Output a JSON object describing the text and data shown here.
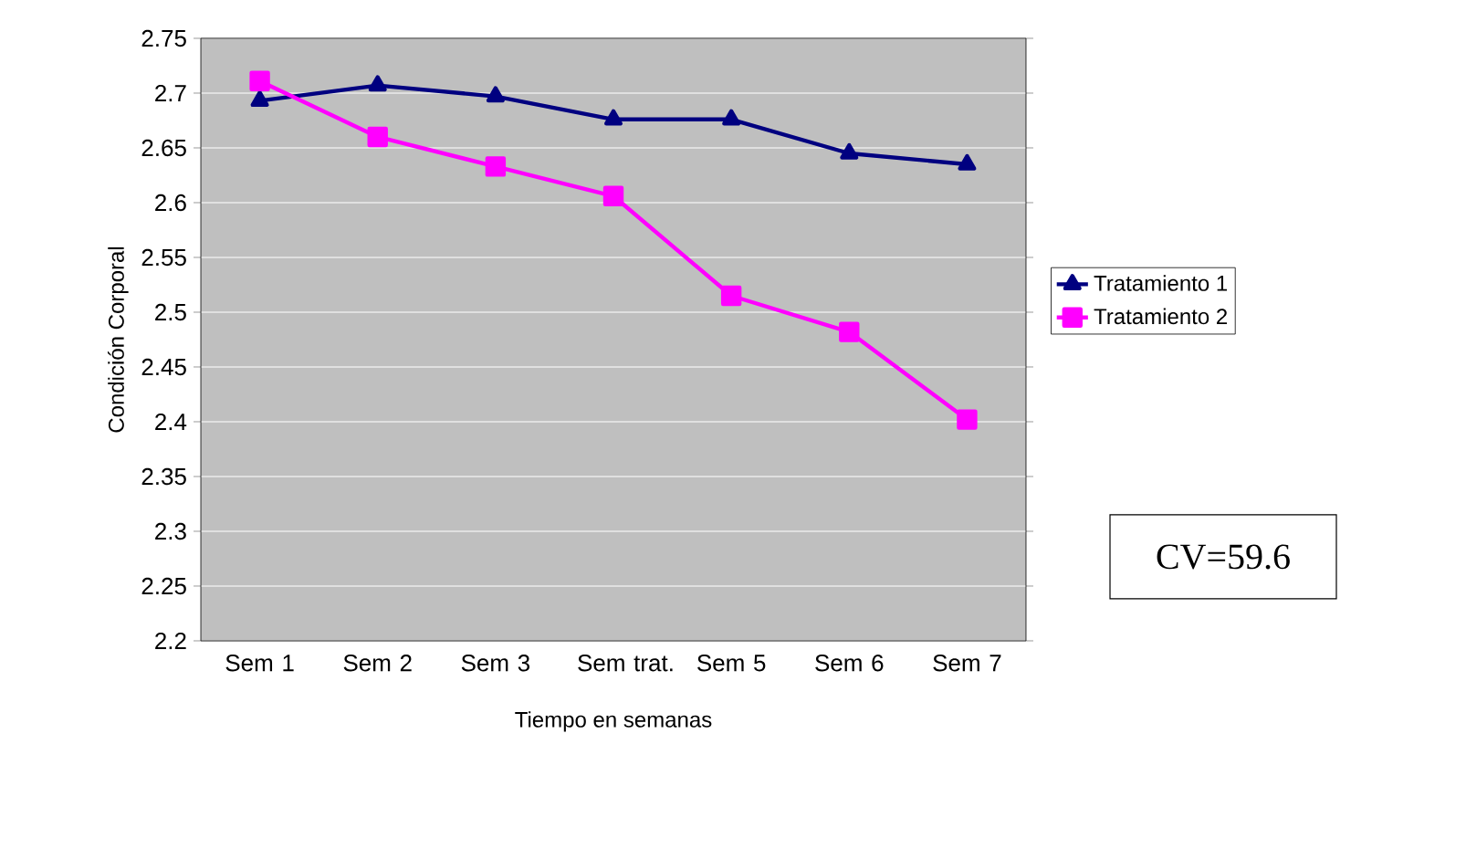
{
  "chart_data": {
    "type": "line",
    "xlabel": "Tiempo en semanas",
    "ylabel": "Condición Corporal",
    "categories": [
      "Sem 1",
      "Sem 2",
      "Sem 3",
      "Sem trat.",
      "Sem 5",
      "Sem 6",
      "Sem 7"
    ],
    "series": [
      {
        "name": "Tratamiento 1",
        "color": "#000080",
        "marker": "triangle",
        "values": [
          2.693,
          2.707,
          2.697,
          2.676,
          2.676,
          2.645,
          2.635
        ]
      },
      {
        "name": "Tratamiento 2",
        "color": "#ff00ff",
        "marker": "square",
        "values": [
          2.711,
          2.66,
          2.633,
          2.606,
          2.515,
          2.482,
          2.402
        ]
      }
    ],
    "ylim": [
      2.2,
      2.75
    ],
    "yticks": [
      2.2,
      2.25,
      2.3,
      2.35,
      2.4,
      2.45,
      2.5,
      2.55,
      2.6,
      2.65,
      2.7,
      2.75
    ],
    "grid": "y",
    "legend": "right",
    "line_style": "solid",
    "annotations": [
      "CV=59.6"
    ]
  }
}
